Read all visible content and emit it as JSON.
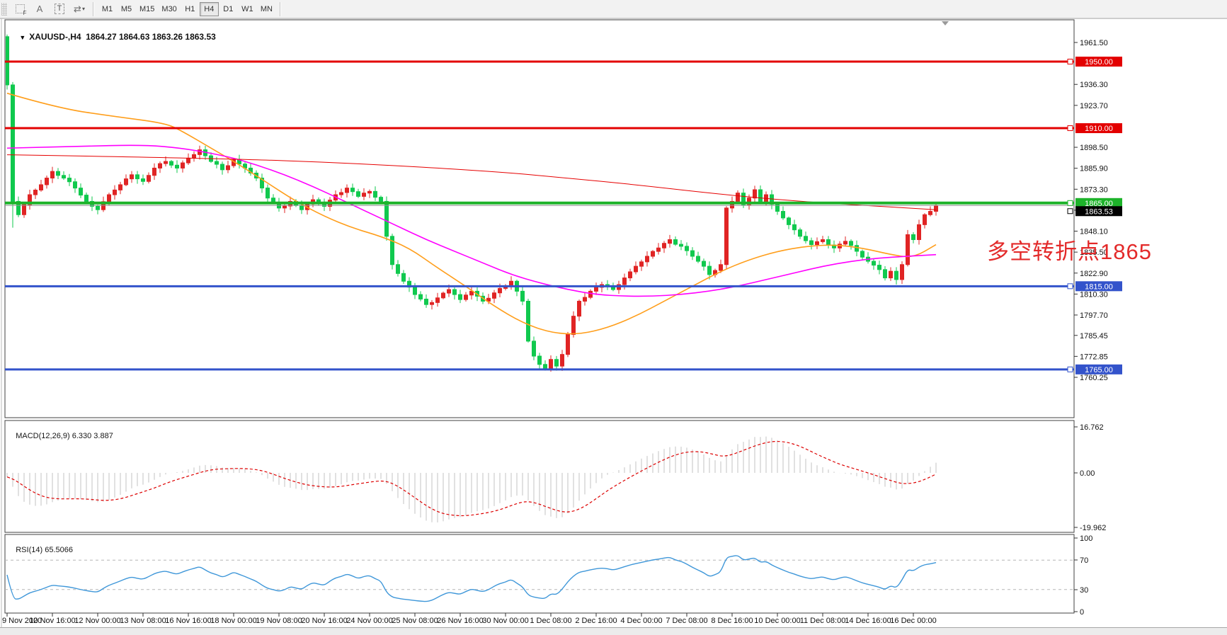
{
  "toolbar": {
    "icons": [
      "templates-grid-icon",
      "font-a-icon",
      "text-label-icon",
      "cycle-arrows-icon",
      "dropdown-caret-icon"
    ],
    "icon_glyphs": {
      "grid_f": "F",
      "font_a": "A",
      "text_t": "T",
      "arrows": "⇄",
      "caret": "▾"
    },
    "timeframes": [
      "M1",
      "M5",
      "M15",
      "M30",
      "H1",
      "H4",
      "D1",
      "W1",
      "MN"
    ],
    "active_timeframe": "H4"
  },
  "title": {
    "dropdown_icon": "▼",
    "text": "XAUUSD-,H4  1864.27 1864.63 1863.26 1863.53"
  },
  "annotation": {
    "text": "多空转折点1865",
    "color": "#e32a2a"
  },
  "indicator_labels": {
    "macd": "MACD(12,26,9)",
    "macd_values": "6.330 3.887",
    "rsi": "RSI(14)",
    "rsi_value": "65.5066"
  },
  "price_scale": {
    "ticks": [
      "1961.50",
      "1936.30",
      "1923.70",
      "1898.50",
      "1885.90",
      "1873.30",
      "1860.70",
      "1848.10",
      "1835.50",
      "1822.90",
      "1810.30",
      "1797.70",
      "1785.45",
      "1772.85",
      "1760.25"
    ]
  },
  "macd_scale": [
    "16.762",
    "0.00",
    "-19.962"
  ],
  "rsi_scale": [
    "100",
    "70",
    "30",
    "0"
  ],
  "time_scale": {
    "labels": [
      "9 Nov 2020",
      "10 Nov 16:00",
      "12 Nov 00:00",
      "13 Nov 08:00",
      "16 Nov 16:00",
      "18 Nov 00:00",
      "19 Nov 08:00",
      "20 Nov 16:00",
      "24 Nov 00:00",
      "25 Nov 08:00",
      "26 Nov 16:00",
      "30 Nov 00:00",
      "1 Dec 08:00",
      "2 Dec 16:00",
      "4 Dec 00:00",
      "7 Dec 08:00",
      "8 Dec 16:00",
      "10 Dec 00:00",
      "11 Dec 08:00",
      "14 Dec 16:00",
      "16 Dec 00:00"
    ]
  },
  "chart_data": {
    "type": "candlestick",
    "symbol": "XAUUSD-",
    "timeframe": "H4",
    "ohlc_current": {
      "open": 1864.27,
      "high": 1864.63,
      "low": 1863.26,
      "close": 1863.53
    },
    "levels": [
      {
        "price": 1950.0,
        "label": "1950.00",
        "color": "#e30000",
        "width": 3
      },
      {
        "price": 1910.0,
        "label": "1910.00",
        "color": "#e30000",
        "width": 3
      },
      {
        "price": 1865.0,
        "label": "1865.00",
        "color": "#1db32a",
        "width": 4
      },
      {
        "price": 1815.0,
        "label": "1815.00",
        "color": "#3353cb",
        "width": 3
      },
      {
        "price": 1765.0,
        "label": "1765.00",
        "color": "#3353cb",
        "width": 3
      }
    ],
    "current_price": {
      "price": 1863.53,
      "label": "1863.53",
      "label_bg": "#000000",
      "line_color": "#8f8f8f"
    },
    "bars": 165,
    "up_color": "#e02424",
    "down_color": "#10c94e",
    "close_anchors": [
      [
        0,
        1936
      ],
      [
        1,
        1866
      ],
      [
        2,
        1858
      ],
      [
        4,
        1870
      ],
      [
        6,
        1876
      ],
      [
        8,
        1884
      ],
      [
        10,
        1880
      ],
      [
        12,
        1874
      ],
      [
        14,
        1866
      ],
      [
        16,
        1861
      ],
      [
        18,
        1870
      ],
      [
        20,
        1876
      ],
      [
        22,
        1882
      ],
      [
        24,
        1878
      ],
      [
        26,
        1886
      ],
      [
        28,
        1890
      ],
      [
        30,
        1886
      ],
      [
        32,
        1892
      ],
      [
        34,
        1897
      ],
      [
        36,
        1890
      ],
      [
        38,
        1885
      ],
      [
        40,
        1891
      ],
      [
        42,
        1886
      ],
      [
        44,
        1880
      ],
      [
        46,
        1868
      ],
      [
        48,
        1862
      ],
      [
        50,
        1866
      ],
      [
        52,
        1861
      ],
      [
        54,
        1867
      ],
      [
        56,
        1863
      ],
      [
        58,
        1870
      ],
      [
        60,
        1874
      ],
      [
        62,
        1869
      ],
      [
        64,
        1872
      ],
      [
        66,
        1866
      ],
      [
        67,
        1845
      ],
      [
        68,
        1828
      ],
      [
        70,
        1818
      ],
      [
        72,
        1810
      ],
      [
        74,
        1804
      ],
      [
        76,
        1808
      ],
      [
        78,
        1813
      ],
      [
        80,
        1807
      ],
      [
        82,
        1812
      ],
      [
        84,
        1806
      ],
      [
        86,
        1811
      ],
      [
        88,
        1815
      ],
      [
        89,
        1818
      ],
      [
        90,
        1812
      ],
      [
        91,
        1806
      ],
      [
        92,
        1782
      ],
      [
        93,
        1773
      ],
      [
        94,
        1768
      ],
      [
        95,
        1765
      ],
      [
        96,
        1771
      ],
      [
        97,
        1767
      ],
      [
        98,
        1774
      ],
      [
        99,
        1786
      ],
      [
        100,
        1797
      ],
      [
        101,
        1806
      ],
      [
        103,
        1812
      ],
      [
        105,
        1816
      ],
      [
        107,
        1813
      ],
      [
        109,
        1820
      ],
      [
        111,
        1827
      ],
      [
        113,
        1833
      ],
      [
        115,
        1838
      ],
      [
        117,
        1843
      ],
      [
        119,
        1839
      ],
      [
        121,
        1833
      ],
      [
        123,
        1827
      ],
      [
        124,
        1822
      ],
      [
        126,
        1828
      ],
      [
        127,
        1862
      ],
      [
        128,
        1866
      ],
      [
        129,
        1871
      ],
      [
        130,
        1864
      ],
      [
        131,
        1868
      ],
      [
        132,
        1873
      ],
      [
        133,
        1866
      ],
      [
        134,
        1870
      ],
      [
        136,
        1860
      ],
      [
        138,
        1852
      ],
      [
        140,
        1845
      ],
      [
        142,
        1840
      ],
      [
        144,
        1843
      ],
      [
        146,
        1838
      ],
      [
        148,
        1842
      ],
      [
        150,
        1836
      ],
      [
        152,
        1830
      ],
      [
        154,
        1825
      ],
      [
        155,
        1820
      ],
      [
        156,
        1824
      ],
      [
        157,
        1819
      ],
      [
        158,
        1828
      ],
      [
        159,
        1846
      ],
      [
        160,
        1843
      ],
      [
        161,
        1852
      ],
      [
        162,
        1858
      ],
      [
        163,
        1860
      ],
      [
        164,
        1863.5
      ]
    ],
    "wick_overrides": {
      "0": {
        "high": 1966.3
      },
      "1": {
        "low": 1850.2
      },
      "95": {
        "low": 1764.3
      }
    },
    "moving_averages": [
      {
        "name": "ma-fast-orange",
        "color": "#ff9e1b",
        "points": [
          [
            0,
            1931
          ],
          [
            9,
            1922
          ],
          [
            19,
            1917
          ],
          [
            28,
            1913
          ],
          [
            31,
            1908
          ],
          [
            36,
            1898
          ],
          [
            41,
            1888
          ],
          [
            46,
            1877
          ],
          [
            51,
            1866
          ],
          [
            56,
            1857
          ],
          [
            61,
            1850
          ],
          [
            66,
            1845
          ],
          [
            71,
            1838
          ],
          [
            76,
            1826
          ],
          [
            81,
            1815
          ],
          [
            86,
            1803
          ],
          [
            91,
            1793
          ],
          [
            96,
            1787
          ],
          [
            101,
            1786
          ],
          [
            106,
            1790
          ],
          [
            111,
            1797
          ],
          [
            116,
            1806
          ],
          [
            121,
            1815
          ],
          [
            126,
            1824
          ],
          [
            131,
            1831
          ],
          [
            136,
            1836
          ],
          [
            141,
            1839
          ],
          [
            146,
            1840
          ],
          [
            151,
            1838
          ],
          [
            156,
            1834
          ],
          [
            160,
            1832
          ],
          [
            164,
            1840
          ]
        ]
      },
      {
        "name": "ma-mid-magenta",
        "color": "#ff00ff",
        "points": [
          [
            0,
            1898
          ],
          [
            12,
            1899
          ],
          [
            24,
            1900
          ],
          [
            31,
            1898
          ],
          [
            39,
            1893
          ],
          [
            44,
            1888
          ],
          [
            49,
            1882
          ],
          [
            54,
            1875
          ],
          [
            59,
            1867
          ],
          [
            64,
            1859
          ],
          [
            69,
            1851
          ],
          [
            74,
            1843
          ],
          [
            79,
            1836
          ],
          [
            84,
            1829
          ],
          [
            89,
            1822
          ],
          [
            94,
            1817
          ],
          [
            99,
            1813
          ],
          [
            104,
            1810
          ],
          [
            109,
            1809
          ],
          [
            114,
            1809
          ],
          [
            119,
            1810
          ],
          [
            124,
            1812
          ],
          [
            129,
            1815
          ],
          [
            134,
            1819
          ],
          [
            139,
            1823
          ],
          [
            144,
            1827
          ],
          [
            149,
            1830
          ],
          [
            154,
            1832
          ],
          [
            159,
            1833
          ],
          [
            164,
            1834
          ]
        ]
      },
      {
        "name": "ma-slow-red",
        "color": "#e60000",
        "points": [
          [
            0,
            1894
          ],
          [
            36,
            1892
          ],
          [
            61,
            1889
          ],
          [
            86,
            1884
          ],
          [
            99,
            1880
          ],
          [
            111,
            1876
          ],
          [
            124,
            1871
          ],
          [
            136,
            1867
          ],
          [
            149,
            1864
          ],
          [
            164,
            1861
          ]
        ]
      }
    ],
    "macd": {
      "fast": 12,
      "slow": 26,
      "signal": 9,
      "current_macd": 6.33,
      "current_signal": 3.887,
      "histogram_color": "#c3c3c3",
      "signal_color": "#dd0000"
    },
    "rsi": {
      "period": 14,
      "current": 65.5066,
      "color": "#3f97d9",
      "overbought": 70,
      "oversold": 30
    }
  }
}
